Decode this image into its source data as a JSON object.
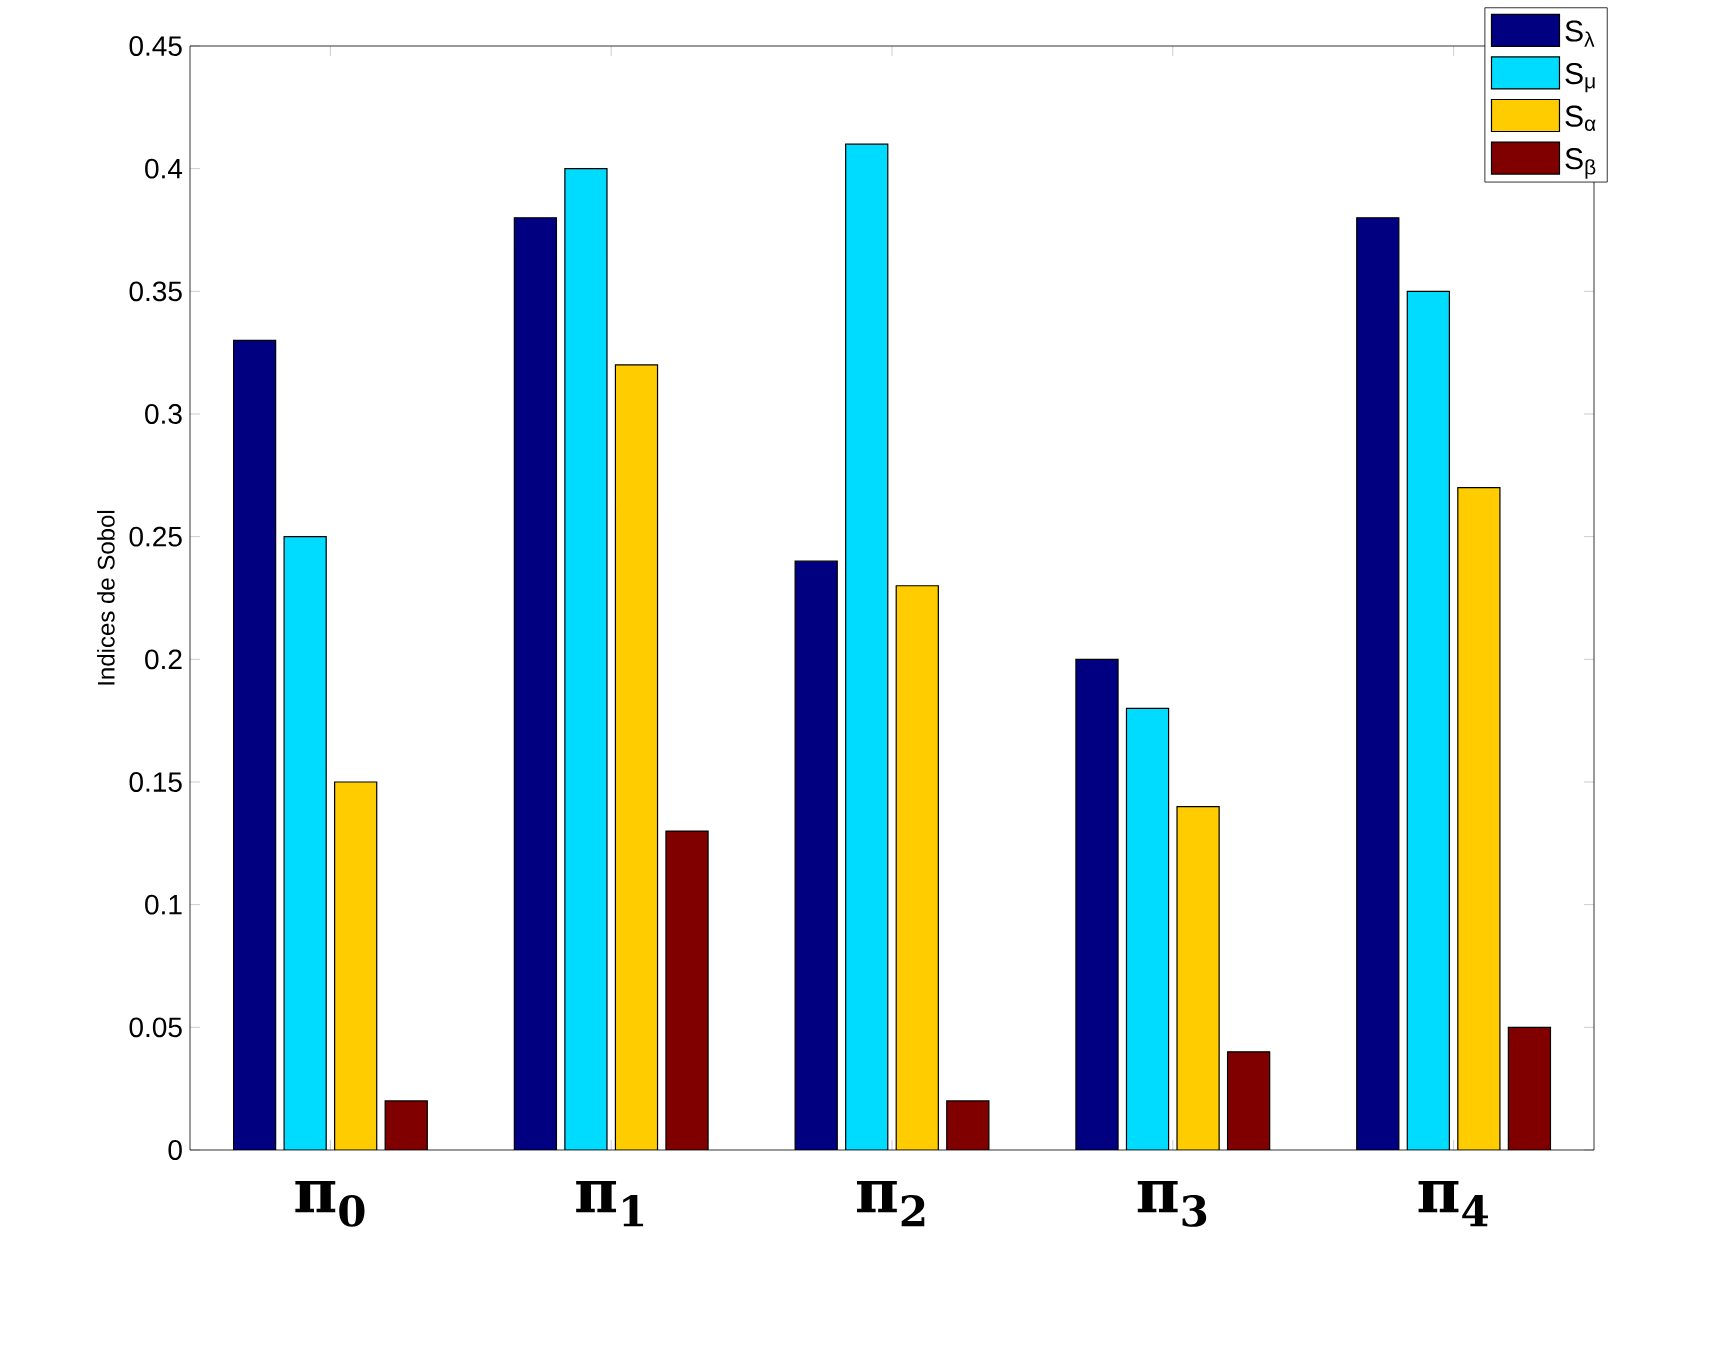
{
  "chart_data": {
    "type": "bar",
    "ylabel": "Indices de Sobol",
    "categories": [
      "π$_{0}$",
      "π$_{1}$",
      "π$_{2}$",
      "π$_{3}$",
      "π$_{4}$"
    ],
    "series": [
      {
        "name": "S$_{λ}$",
        "color": "#000080",
        "values": [
          0.33,
          0.38,
          0.24,
          0.2,
          0.38
        ]
      },
      {
        "name": "S$_{μ}$",
        "color": "#00dcff",
        "values": [
          0.25,
          0.4,
          0.41,
          0.18,
          0.35
        ]
      },
      {
        "name": "S$_{α}$",
        "color": "#ffcc00",
        "values": [
          0.15,
          0.32,
          0.23,
          0.14,
          0.27
        ]
      },
      {
        "name": "S$_{β}$",
        "color": "#800000",
        "values": [
          0.02,
          0.13,
          0.02,
          0.04,
          0.05
        ]
      }
    ],
    "ylim": [
      0,
      0.45
    ],
    "yticks": [
      0,
      0.05,
      0.1,
      0.15,
      0.2,
      0.25,
      0.3,
      0.35,
      0.4,
      0.45
    ],
    "legend": "top right",
    "grid": false
  }
}
